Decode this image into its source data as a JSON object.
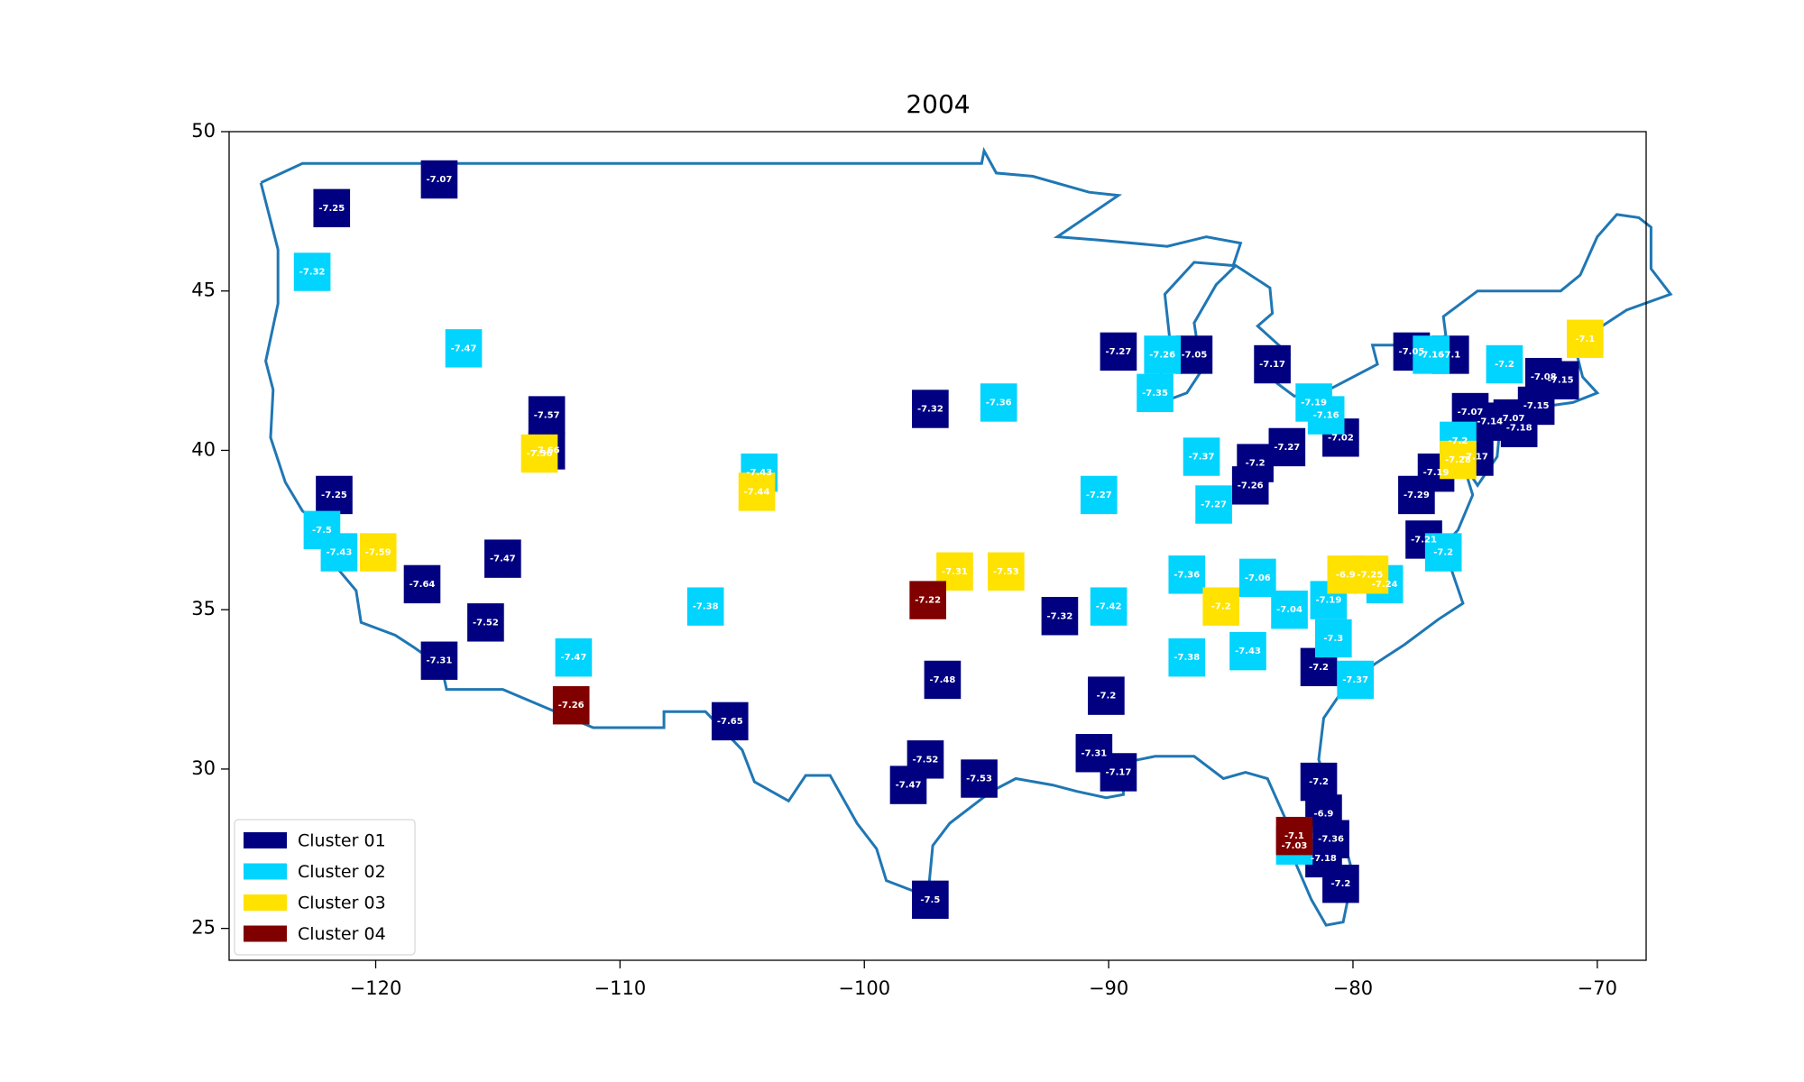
{
  "chart_data": {
    "type": "map",
    "title": "2004",
    "xlim": [
      -126,
      -68
    ],
    "ylim": [
      24,
      50
    ],
    "xticks": [
      {
        "value": -120,
        "label": "−120"
      },
      {
        "value": -110,
        "label": "−110"
      },
      {
        "value": -100,
        "label": "−100"
      },
      {
        "value": -90,
        "label": "−90"
      },
      {
        "value": -80,
        "label": "−80"
      },
      {
        "value": -70,
        "label": "−70"
      }
    ],
    "yticks": [
      25,
      30,
      35,
      40,
      45,
      50
    ],
    "legend": "lower left",
    "series": [
      {
        "name": "Cluster 01",
        "color": "#000080",
        "x": [
          -121.8,
          -117.4,
          -113,
          -113,
          -121.7,
          -114.8,
          -118.1,
          -115.5,
          -117.4,
          -105.5,
          -97.3,
          -96.8,
          -97.5,
          -98.2,
          -95.3,
          -92,
          -90.1,
          -90.6,
          -89.6,
          -89.6,
          -86.5,
          -83.3,
          -84,
          -84.2,
          -82.7,
          -80.5,
          -77.6,
          -76,
          -75.2,
          -74.4,
          -73.5,
          -73.2,
          -72.5,
          -71.5,
          -72.2,
          -75,
          -76.6,
          -77.4,
          -77.1,
          -81.4,
          -81.4,
          -81.2,
          -80.9,
          -81.2,
          -80.5,
          -97.3
        ],
        "y": [
          47.6,
          48.5,
          41.1,
          40,
          38.6,
          36.6,
          35.8,
          34.6,
          33.4,
          31.5,
          41.3,
          32.8,
          30.3,
          29.5,
          29.7,
          34.8,
          32.3,
          30.5,
          29.9,
          43.1,
          43,
          42.7,
          39.6,
          38.9,
          40.1,
          40.4,
          43.1,
          43,
          41.2,
          40.9,
          41,
          40.7,
          41.4,
          42.2,
          42.3,
          39.8,
          39.3,
          38.6,
          37.2,
          33.2,
          29.6,
          28.6,
          27.8,
          27.2,
          26.4,
          25.9
        ],
        "values": [
          -7.25,
          -7.07,
          -7.57,
          -7.66,
          -7.25,
          -7.47,
          -7.64,
          -7.52,
          -7.31,
          -7.65,
          -7.32,
          -7.48,
          -7.52,
          -7.47,
          -7.53,
          -7.32,
          -7.2,
          -7.31,
          -7.17,
          -7.27,
          -7.05,
          -7.17,
          -7.2,
          -7.26,
          -7.27,
          -7.02,
          -7.05,
          -7.1,
          -7.07,
          -7.14,
          -7.07,
          -7.18,
          -7.15,
          -7.15,
          -7.08,
          -7.17,
          -7.19,
          -7.29,
          -7.21,
          -7.2,
          -7.2,
          -6.9,
          -7.36,
          -7.18,
          -7.2,
          -7.5
        ]
      },
      {
        "name": "Cluster 02",
        "color": "#00d4ff",
        "x": [
          -122.6,
          -116.4,
          -122.2,
          -121.5,
          -104.3,
          -106.5,
          -111.9,
          -94.5,
          -90.4,
          -87.8,
          -88.1,
          -86.2,
          -85.7,
          -86.8,
          -83.9,
          -90,
          -86.8,
          -84.3,
          -81.6,
          -81.1,
          -82.6,
          -81,
          -80.8,
          -79.9,
          -75.7,
          -76.8,
          -73.8,
          -76.3,
          -78.7,
          -82.4
        ],
        "y": [
          45.6,
          43.2,
          37.5,
          36.8,
          39.3,
          35.1,
          33.5,
          41.5,
          38.6,
          43,
          41.8,
          39.8,
          38.3,
          36.1,
          36,
          35.1,
          33.5,
          33.7,
          41.5,
          41.1,
          35,
          35.3,
          34.1,
          32.8,
          40.3,
          43,
          42.7,
          36.8,
          35.8,
          27.6
        ],
        "values": [
          -7.32,
          -7.47,
          -7.5,
          -7.43,
          -7.43,
          -7.38,
          -7.47,
          -7.36,
          -7.27,
          -7.26,
          -7.35,
          -7.37,
          -7.27,
          -7.36,
          -7.06,
          -7.42,
          -7.38,
          -7.43,
          -7.19,
          -7.16,
          -7.04,
          -7.19,
          -7.3,
          -7.37,
          -7.2,
          -7.16,
          -7.2,
          -7.2,
          -7.24,
          -7.03
        ]
      },
      {
        "name": "Cluster 03",
        "color": "#ffe200",
        "x": [
          -113.3,
          -119.9,
          -104.4,
          -96.3,
          -94.2,
          -85.4,
          -80.3,
          -79.3,
          -75.7,
          -70.5
        ],
        "y": [
          39.9,
          36.8,
          38.7,
          36.2,
          36.2,
          35.1,
          36.1,
          36.1,
          39.7,
          43.5
        ],
        "values": [
          -7.56,
          -7.59,
          -7.44,
          -7.31,
          -7.53,
          -7.2,
          -6.9,
          -7.25,
          -7.28,
          -7.1
        ]
      },
      {
        "name": "Cluster 04",
        "color": "#800000",
        "x": [
          -97.4,
          -112,
          -82.4
        ],
        "y": [
          35.3,
          32,
          27.9
        ],
        "values": [
          -7.22,
          -7.26,
          -7.1
        ]
      }
    ]
  }
}
